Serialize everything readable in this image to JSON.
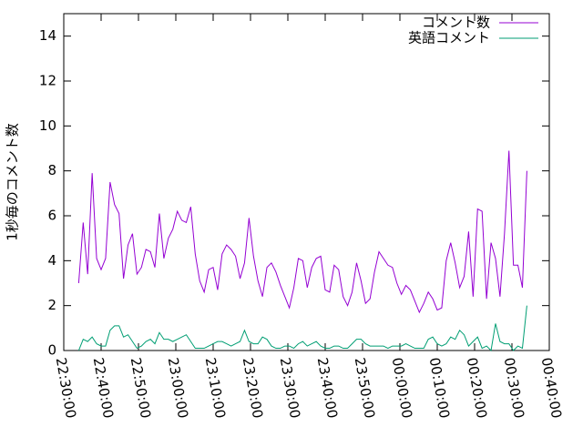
{
  "chart_data": {
    "type": "line",
    "ylabel": "1秒毎のコメント数",
    "x": [
      "22:34:00",
      "22:35:12",
      "22:36:24",
      "22:37:36",
      "22:38:48",
      "22:40:00",
      "22:41:12",
      "22:42:24",
      "22:43:36",
      "22:44:48",
      "22:46:00",
      "22:47:12",
      "22:48:24",
      "22:49:36",
      "22:50:48",
      "22:52:00",
      "22:53:12",
      "22:54:24",
      "22:55:36",
      "22:56:48",
      "22:58:00",
      "22:59:12",
      "23:00:24",
      "23:01:36",
      "23:02:48",
      "23:04:00",
      "23:05:12",
      "23:06:24",
      "23:07:36",
      "23:08:48",
      "23:10:00",
      "23:11:12",
      "23:12:24",
      "23:13:36",
      "23:14:48",
      "23:16:00",
      "23:17:12",
      "23:18:24",
      "23:19:36",
      "23:20:48",
      "23:22:00",
      "23:23:12",
      "23:24:24",
      "23:25:36",
      "23:26:48",
      "23:28:00",
      "23:29:12",
      "23:30:24",
      "23:31:36",
      "23:32:48",
      "23:34:00",
      "23:35:12",
      "23:36:24",
      "23:37:36",
      "23:38:48",
      "23:40:00",
      "23:41:12",
      "23:42:24",
      "23:43:36",
      "23:44:48",
      "23:46:00",
      "23:47:12",
      "23:48:24",
      "23:49:36",
      "23:50:48",
      "23:52:00",
      "23:53:12",
      "23:54:24",
      "23:55:36",
      "23:56:48",
      "23:58:00",
      "23:59:12",
      "00:00:24",
      "00:01:36",
      "00:02:48",
      "00:04:00",
      "00:05:12",
      "00:06:24",
      "00:07:36",
      "00:08:48",
      "00:10:00",
      "00:11:12",
      "00:12:24",
      "00:13:36",
      "00:14:48",
      "00:16:00",
      "00:17:12",
      "00:18:24",
      "00:19:36",
      "00:20:48",
      "00:22:00",
      "00:23:12",
      "00:24:24",
      "00:25:36",
      "00:26:48",
      "00:28:00",
      "00:29:12",
      "00:30:24",
      "00:31:36",
      "00:32:48",
      "00:34:00"
    ],
    "series": [
      {
        "name": "コメント数",
        "color": "#9400d3",
        "values": [
          3.0,
          5.7,
          3.4,
          7.9,
          4.1,
          3.6,
          4.1,
          7.5,
          6.5,
          6.1,
          3.2,
          4.7,
          5.2,
          3.4,
          3.7,
          4.5,
          4.4,
          3.7,
          6.1,
          4.1,
          5.0,
          5.4,
          6.2,
          5.8,
          5.7,
          6.4,
          4.3,
          3.1,
          2.6,
          3.6,
          3.7,
          2.7,
          4.3,
          4.7,
          4.5,
          4.2,
          3.2,
          3.9,
          5.9,
          4.2,
          3.1,
          2.4,
          3.7,
          3.9,
          3.5,
          2.9,
          2.4,
          1.9,
          2.8,
          4.1,
          4.0,
          2.8,
          3.7,
          4.1,
          4.2,
          2.7,
          2.6,
          3.8,
          3.6,
          2.4,
          2.0,
          2.6,
          3.9,
          3.1,
          2.1,
          2.3,
          3.5,
          4.4,
          4.1,
          3.8,
          3.7,
          3.0,
          2.5,
          2.9,
          2.7,
          2.2,
          1.7,
          2.1,
          2.6,
          2.3,
          1.8,
          1.9,
          4.0,
          4.8,
          3.9,
          2.8,
          3.3,
          5.3,
          2.4,
          6.3,
          6.2,
          2.3,
          4.8,
          4.1,
          2.4,
          5.2,
          8.9,
          3.8,
          3.8,
          2.8,
          8.0
        ]
      },
      {
        "name": "英語コメント",
        "color": "#009e73",
        "values": [
          0.0,
          0.5,
          0.4,
          0.6,
          0.3,
          0.2,
          0.2,
          0.9,
          1.1,
          1.1,
          0.6,
          0.7,
          0.4,
          0.1,
          0.2,
          0.4,
          0.5,
          0.3,
          0.8,
          0.5,
          0.5,
          0.4,
          0.5,
          0.6,
          0.7,
          0.4,
          0.1,
          0.1,
          0.1,
          0.2,
          0.3,
          0.4,
          0.4,
          0.3,
          0.2,
          0.3,
          0.4,
          0.9,
          0.4,
          0.3,
          0.3,
          0.6,
          0.5,
          0.2,
          0.1,
          0.1,
          0.2,
          0.2,
          0.1,
          0.3,
          0.4,
          0.2,
          0.3,
          0.4,
          0.2,
          0.1,
          0.1,
          0.2,
          0.2,
          0.1,
          0.1,
          0.3,
          0.5,
          0.5,
          0.3,
          0.2,
          0.2,
          0.2,
          0.2,
          0.1,
          0.2,
          0.2,
          0.2,
          0.3,
          0.2,
          0.1,
          0.1,
          0.1,
          0.5,
          0.6,
          0.3,
          0.2,
          0.3,
          0.6,
          0.5,
          0.9,
          0.7,
          0.2,
          0.4,
          0.6,
          0.1,
          0.2,
          0.0,
          1.2,
          0.4,
          0.3,
          0.3,
          0.0,
          0.2,
          0.1,
          2.0
        ]
      }
    ],
    "xlim": [
      "22:30:00",
      "00:40:00"
    ],
    "xticks": [
      "22:30:00",
      "22:40:00",
      "22:50:00",
      "23:00:00",
      "23:10:00",
      "23:20:00",
      "23:30:00",
      "23:40:00",
      "23:50:00",
      "00:00:00",
      "00:10:00",
      "00:20:00",
      "00:30:00",
      "00:40:00"
    ],
    "ylim": [
      0,
      15
    ],
    "yticks": [
      0,
      2,
      4,
      6,
      8,
      10,
      12,
      14
    ],
    "legend": "top-right"
  }
}
